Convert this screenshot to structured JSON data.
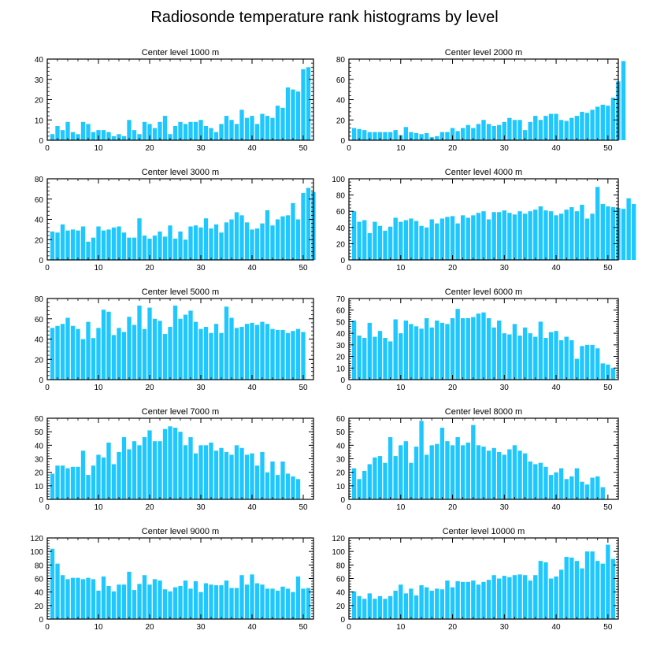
{
  "figure": {
    "title": "Radiosonde temperature rank histograms by level",
    "bar_color": "#1ec8ff"
  },
  "chart_data": [
    {
      "type": "bar",
      "title": "Center level 1000 m",
      "xlim": [
        0,
        52
      ],
      "ylim": [
        0,
        40
      ],
      "yticks": [
        0,
        10,
        20,
        30,
        40
      ],
      "xticks": [
        0,
        10,
        20,
        30,
        40,
        50
      ],
      "values": [
        3,
        7,
        5,
        9,
        4,
        3,
        9,
        8,
        4,
        5,
        5,
        4,
        2,
        3,
        2,
        10,
        5,
        3,
        9,
        8,
        6,
        9,
        12,
        3,
        7,
        9,
        8,
        9,
        9,
        10,
        7,
        6,
        4,
        8,
        12,
        10,
        8,
        15,
        11,
        12,
        8,
        13,
        12,
        11,
        17,
        16,
        26,
        25,
        24,
        35,
        36
      ]
    },
    {
      "type": "bar",
      "title": "Center level 2000 m",
      "xlim": [
        0,
        52
      ],
      "ylim": [
        0,
        80
      ],
      "yticks": [
        0,
        20,
        40,
        60,
        80
      ],
      "xticks": [
        0,
        10,
        20,
        30,
        40,
        50
      ],
      "values": [
        12,
        11,
        10,
        8,
        8,
        8,
        8,
        8,
        10,
        5,
        13,
        8,
        7,
        6,
        7,
        3,
        4,
        8,
        8,
        12,
        9,
        12,
        15,
        12,
        16,
        20,
        16,
        14,
        15,
        18,
        22,
        20,
        20,
        10,
        18,
        24,
        20,
        24,
        26,
        26,
        20,
        19,
        22,
        24,
        28,
        27,
        30,
        33,
        35,
        34,
        42,
        58,
        78
      ]
    },
    {
      "type": "bar",
      "title": "Center level 3000 m",
      "xlim": [
        0,
        52
      ],
      "ylim": [
        0,
        80
      ],
      "yticks": [
        0,
        20,
        40,
        60,
        80
      ],
      "xticks": [
        0,
        10,
        20,
        30,
        40,
        50
      ],
      "values": [
        28,
        27,
        35,
        29,
        30,
        29,
        33,
        18,
        22,
        33,
        29,
        30,
        32,
        33,
        27,
        22,
        22,
        41,
        24,
        21,
        24,
        28,
        23,
        34,
        21,
        28,
        20,
        33,
        34,
        32,
        41,
        31,
        35,
        27,
        37,
        40,
        47,
        44,
        37,
        30,
        31,
        36,
        49,
        34,
        40,
        43,
        44,
        56,
        40,
        66,
        71,
        67
      ]
    },
    {
      "type": "bar",
      "title": "Center level 4000 m",
      "xlim": [
        0,
        52
      ],
      "ylim": [
        0,
        100
      ],
      "yticks": [
        0,
        20,
        40,
        60,
        80,
        100
      ],
      "xticks": [
        0,
        10,
        20,
        30,
        40,
        50
      ],
      "values": [
        60,
        47,
        49,
        33,
        47,
        42,
        36,
        41,
        52,
        47,
        49,
        51,
        48,
        42,
        40,
        50,
        45,
        51,
        53,
        54,
        45,
        55,
        52,
        55,
        58,
        60,
        50,
        59,
        59,
        61,
        58,
        56,
        60,
        57,
        60,
        62,
        66,
        61,
        60,
        55,
        57,
        62,
        65,
        60,
        68,
        51,
        57,
        90,
        69,
        66,
        65,
        64,
        63,
        76,
        69
      ]
    },
    {
      "type": "bar",
      "title": "Center level 5000 m",
      "xlim": [
        0,
        52
      ],
      "ylim": [
        0,
        80
      ],
      "yticks": [
        0,
        20,
        40,
        60,
        80
      ],
      "xticks": [
        0,
        10,
        20,
        30,
        40,
        50
      ],
      "values": [
        51,
        53,
        55,
        61,
        53,
        50,
        40,
        57,
        41,
        51,
        69,
        67,
        44,
        51,
        47,
        62,
        54,
        73,
        50,
        71,
        60,
        58,
        45,
        52,
        73,
        60,
        64,
        68,
        57,
        50,
        52,
        46,
        55,
        46,
        72,
        61,
        51,
        52,
        55,
        56,
        54,
        57,
        55,
        50,
        49,
        49,
        46,
        48,
        50,
        47
      ]
    },
    {
      "type": "bar",
      "title": "Center level 6000 m",
      "xlim": [
        0,
        52
      ],
      "ylim": [
        0,
        70
      ],
      "yticks": [
        0,
        10,
        20,
        30,
        40,
        50,
        60,
        70
      ],
      "xticks": [
        0,
        10,
        20,
        30,
        40,
        50
      ],
      "values": [
        51,
        38,
        36,
        49,
        37,
        42,
        36,
        33,
        52,
        40,
        51,
        48,
        46,
        44,
        53,
        45,
        51,
        49,
        48,
        53,
        61,
        53,
        53,
        54,
        57,
        58,
        53,
        45,
        51,
        40,
        39,
        48,
        38,
        45,
        40,
        37,
        50,
        36,
        41,
        42,
        34,
        37,
        34,
        18,
        29,
        30,
        30,
        27,
        14,
        13,
        10
      ]
    },
    {
      "type": "bar",
      "title": "Center level 7000 m",
      "xlim": [
        0,
        52
      ],
      "ylim": [
        0,
        60
      ],
      "yticks": [
        0,
        10,
        20,
        30,
        40,
        50,
        60
      ],
      "xticks": [
        0,
        10,
        20,
        30,
        40,
        50
      ],
      "values": [
        19,
        25,
        25,
        23,
        24,
        24,
        36,
        18,
        25,
        33,
        31,
        42,
        26,
        35,
        46,
        37,
        43,
        40,
        46,
        51,
        43,
        43,
        52,
        54,
        53,
        50,
        40,
        46,
        34,
        40,
        40,
        42,
        36,
        38,
        35,
        33,
        40,
        38,
        33,
        34,
        25,
        35,
        20,
        28,
        18,
        28,
        19,
        17,
        15
      ]
    },
    {
      "type": "bar",
      "title": "Center level 8000 m",
      "xlim": [
        0,
        52
      ],
      "ylim": [
        0,
        60
      ],
      "yticks": [
        0,
        10,
        20,
        30,
        40,
        50,
        60
      ],
      "xticks": [
        0,
        10,
        20,
        30,
        40,
        50
      ],
      "values": [
        23,
        15,
        21,
        26,
        31,
        32,
        27,
        46,
        32,
        40,
        43,
        27,
        39,
        58,
        33,
        40,
        41,
        53,
        43,
        40,
        46,
        40,
        42,
        55,
        40,
        39,
        36,
        38,
        35,
        33,
        37,
        40,
        36,
        34,
        28,
        26,
        27,
        24,
        18,
        20,
        23,
        15,
        17,
        23,
        13,
        11,
        16,
        17,
        9
      ]
    },
    {
      "type": "bar",
      "title": "Center level 9000 m",
      "xlim": [
        0,
        52
      ],
      "ylim": [
        0,
        120
      ],
      "yticks": [
        0,
        20,
        40,
        60,
        80,
        100,
        120
      ],
      "xticks": [
        0,
        10,
        20,
        30,
        40,
        50
      ],
      "values": [
        104,
        82,
        65,
        59,
        61,
        61,
        59,
        61,
        59,
        42,
        63,
        49,
        41,
        51,
        51,
        70,
        43,
        52,
        65,
        51,
        59,
        57,
        44,
        41,
        47,
        49,
        57,
        45,
        56,
        40,
        53,
        51,
        50,
        50,
        57,
        46,
        46,
        65,
        51,
        66,
        53,
        51,
        45,
        45,
        42,
        48,
        45,
        40,
        63,
        45,
        46
      ]
    },
    {
      "type": "bar",
      "title": "Center level 10000 m",
      "xlim": [
        0,
        52
      ],
      "ylim": [
        0,
        120
      ],
      "yticks": [
        0,
        20,
        40,
        60,
        80,
        100,
        120
      ],
      "xticks": [
        0,
        10,
        20,
        30,
        40,
        50
      ],
      "values": [
        41,
        34,
        30,
        38,
        30,
        34,
        30,
        34,
        42,
        51,
        38,
        45,
        35,
        50,
        47,
        42,
        45,
        44,
        57,
        47,
        56,
        55,
        55,
        57,
        51,
        55,
        58,
        65,
        60,
        64,
        62,
        65,
        66,
        65,
        57,
        65,
        86,
        84,
        60,
        63,
        73,
        92,
        91,
        86,
        75,
        100,
        100,
        86,
        82,
        110,
        89
      ]
    }
  ]
}
